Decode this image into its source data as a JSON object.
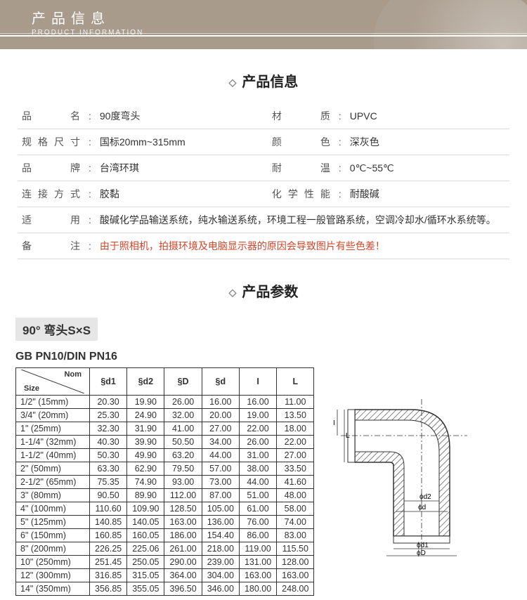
{
  "header": {
    "cn": "产品信息",
    "en": "PRODUCT INFORMATION"
  },
  "section_info_title": "产品信息",
  "section_spec_title": "产品参数",
  "info": {
    "rows2col": [
      {
        "l1": "品　　名",
        "v1": "90度弯头",
        "l2": "材　　质",
        "v2": "UPVC"
      },
      {
        "l1": "规格尺寸",
        "v1": "国标20mm~315mm",
        "l2": "颜　　色",
        "v2": "深灰色"
      },
      {
        "l1": "品　　牌",
        "v1": "台湾环琪",
        "l2": "耐　　温",
        "v2": "0℃~55℃"
      },
      {
        "l1": "连接方式",
        "v1": "胶黏",
        "l2": "化学性能",
        "v2": "耐酸碱"
      }
    ],
    "rows1col": [
      {
        "l": "适　　用",
        "v": "酸碱化学品输送系统，纯水输送系统，环境工程一般管路系统，空调冷却水/循环水系统等。",
        "cls": ""
      },
      {
        "l": "备　　注",
        "v": "由于照相机，拍摄环境及电脑显示器的原因会导致图片有些色差！",
        "cls": "info-note"
      }
    ]
  },
  "subtype": "90°  弯头S×S",
  "spec_title": "GB PN10/DIN PN16",
  "spec": {
    "headers": [
      "§d1",
      "§d2",
      "§D",
      "§d",
      "I",
      "L"
    ],
    "rows": [
      {
        "size": "1/2\" (15mm)",
        "v": [
          "20.30",
          "19.90",
          "26.00",
          "16.00",
          "16.00",
          "11.00"
        ]
      },
      {
        "size": "3/4\" (20mm)",
        "v": [
          "25.30",
          "24.90",
          "32.00",
          "20.00",
          "19.00",
          "13.50"
        ]
      },
      {
        "size": "1\" (25mm)",
        "v": [
          "32.30",
          "31.90",
          "41.00",
          "27.00",
          "22.00",
          "18.00"
        ]
      },
      {
        "size": "1-1/4\" (32mm)",
        "v": [
          "40.30",
          "39.90",
          "50.50",
          "34.00",
          "26.00",
          "22.00"
        ]
      },
      {
        "size": "1-1/2\" (40mm)",
        "v": [
          "50.30",
          "49.90",
          "63.20",
          "44.00",
          "31.00",
          "27.00"
        ]
      },
      {
        "size": "2\" (50mm)",
        "v": [
          "63.30",
          "62.90",
          "79.50",
          "57.00",
          "38.00",
          "33.50"
        ]
      },
      {
        "size": "2-1/2\" (65mm)",
        "v": [
          "75.35",
          "74.90",
          "93.00",
          "73.00",
          "44.00",
          "41.60"
        ]
      },
      {
        "size": "3\" (80mm)",
        "v": [
          "90.50",
          "89.90",
          "112.00",
          "87.00",
          "51.00",
          "48.00"
        ]
      },
      {
        "size": "4\" (100mm)",
        "v": [
          "110.60",
          "109.90",
          "128.50",
          "105.00",
          "61.00",
          "58.00"
        ]
      },
      {
        "size": "5\" (125mm)",
        "v": [
          "140.85",
          "140.05",
          "163.00",
          "136.00",
          "76.00",
          "74.00"
        ]
      },
      {
        "size": "6\" (150mm)",
        "v": [
          "160.85",
          "160.05",
          "186.00",
          "154.40",
          "86.00",
          "83.00"
        ]
      },
      {
        "size": "8\" (200mm)",
        "v": [
          "226.25",
          "225.06",
          "261.00",
          "218.00",
          "119.00",
          "115.50"
        ]
      },
      {
        "size": "10\" (250mm)",
        "v": [
          "251.45",
          "250.05",
          "290.00",
          "239.00",
          "131.00",
          "128.00"
        ]
      },
      {
        "size": "12\" (300mm)",
        "v": [
          "316.85",
          "315.05",
          "364.00",
          "304.00",
          "163.00",
          "163.00"
        ]
      },
      {
        "size": "14\" (350mm)",
        "v": [
          "356.85",
          "355.05",
          "396.50",
          "346.00",
          "180.00",
          "248.00"
        ]
      }
    ]
  },
  "diagram_labels": {
    "d2": "ϕd2",
    "d": "ϕd",
    "d1": "ϕd1",
    "D": "ϕD",
    "I": "I",
    "L": "L"
  },
  "colors": {
    "banner_bg": "#a89b8c",
    "border": "#333333",
    "note": "#d0462a",
    "rule": "#d8d8d8"
  }
}
